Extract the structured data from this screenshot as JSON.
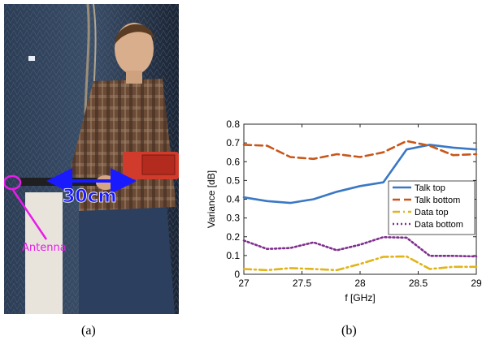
{
  "photo": {
    "measure_label": "30cm",
    "antenna_label": "Antenna",
    "arrow_color": "#1a1aff",
    "antenna_color": "#e81ce8"
  },
  "captions": {
    "a": "(a)",
    "b": "(b)"
  },
  "chart_data": {
    "type": "line",
    "title": "",
    "xlabel": "f [GHz]",
    "ylabel": "Variance [dB]",
    "xlim": [
      27,
      29
    ],
    "ylim": [
      0,
      0.8
    ],
    "xticks": [
      27,
      27.5,
      28,
      28.5,
      29
    ],
    "xtick_labels": [
      "27",
      "27.5",
      "28",
      "28.5",
      "29"
    ],
    "yticks": [
      0,
      0.1,
      0.2,
      0.3,
      0.4,
      0.5,
      0.6,
      0.7,
      0.8
    ],
    "ytick_labels": [
      "0",
      "0.1",
      "0.2",
      "0.3",
      "0.4",
      "0.5",
      "0.6",
      "0.7",
      "0.8"
    ],
    "grid": false,
    "legend_position": "right",
    "series": [
      {
        "name": "Talk top",
        "color": "#3a78c4",
        "dash": "solid",
        "x": [
          27,
          27.2,
          27.4,
          27.6,
          27.8,
          28,
          28.2,
          28.4,
          28.6,
          28.8,
          29
        ],
        "y": [
          0.41,
          0.39,
          0.38,
          0.4,
          0.44,
          0.47,
          0.49,
          0.665,
          0.69,
          0.675,
          0.665
        ]
      },
      {
        "name": "Talk bottom",
        "color": "#c8561a",
        "dash": "dashed",
        "x": [
          27,
          27.2,
          27.4,
          27.6,
          27.8,
          28,
          28.2,
          28.4,
          28.6,
          28.8,
          29
        ],
        "y": [
          0.69,
          0.685,
          0.625,
          0.615,
          0.64,
          0.625,
          0.65,
          0.71,
          0.685,
          0.635,
          0.64
        ]
      },
      {
        "name": "Data top",
        "color": "#e0b41a",
        "dash": "dashdot",
        "x": [
          27,
          27.2,
          27.4,
          27.6,
          27.8,
          28,
          28.2,
          28.4,
          28.6,
          28.8,
          29
        ],
        "y": [
          0.028,
          0.022,
          0.033,
          0.028,
          0.022,
          0.055,
          0.093,
          0.095,
          0.028,
          0.04,
          0.04
        ]
      },
      {
        "name": "Data bottom",
        "color": "#7e2f8e",
        "dash": "dotted",
        "x": [
          27,
          27.2,
          27.4,
          27.6,
          27.8,
          28,
          28.2,
          28.4,
          28.6,
          28.8,
          29
        ],
        "y": [
          0.18,
          0.135,
          0.14,
          0.17,
          0.128,
          0.158,
          0.198,
          0.195,
          0.098,
          0.098,
          0.095
        ]
      }
    ]
  }
}
